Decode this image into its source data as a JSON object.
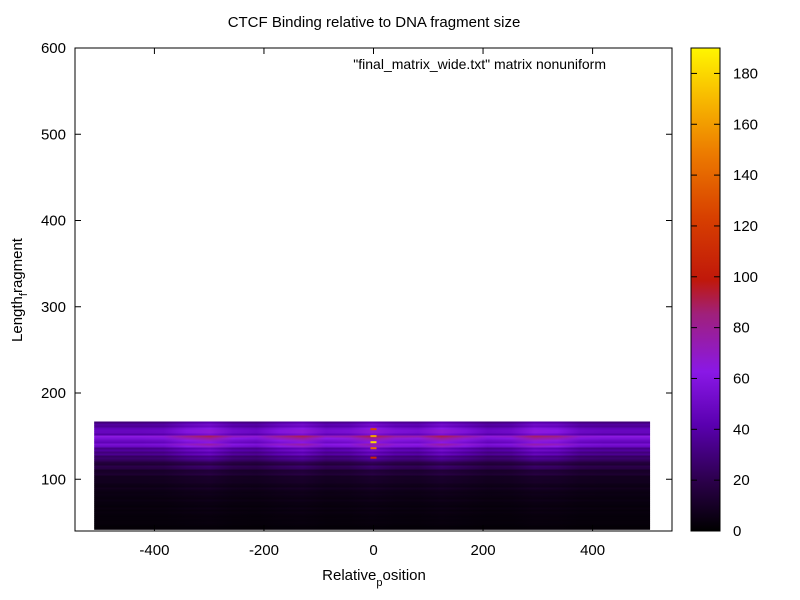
{
  "chart_data": {
    "type": "heatmap",
    "title": "CTCF Binding relative to DNA fragment size",
    "legend_label": "\"final_matrix_wide.txt\" matrix nonuniform",
    "xlabel": {
      "main": "Relative",
      "subscript": "p",
      "rest": "osition"
    },
    "ylabel": {
      "main": "Length",
      "subscript": "f",
      "rest": "ragment"
    },
    "xlim": [
      -545,
      545
    ],
    "ylim": [
      40,
      600
    ],
    "xticks": [
      -400,
      -200,
      0,
      200,
      400
    ],
    "yticks": [
      100,
      200,
      300,
      400,
      500,
      600
    ],
    "data_extent": {
      "x": [
        -510,
        505
      ],
      "y": [
        42,
        167
      ]
    },
    "colorbar": {
      "range": [
        0,
        190
      ],
      "ticks": [
        0,
        20,
        40,
        60,
        80,
        100,
        120,
        140,
        160,
        180
      ],
      "palette": "gnuplot-hot (black-purple-red-orange-yellow)"
    },
    "row_profile": [
      {
        "y": 167,
        "value": 35
      },
      {
        "y": 160,
        "value": 60
      },
      {
        "y": 155,
        "value": 55
      },
      {
        "y": 150,
        "value": 65
      },
      {
        "y": 145,
        "value": 60
      },
      {
        "y": 140,
        "value": 55
      },
      {
        "y": 135,
        "value": 45
      },
      {
        "y": 128,
        "value": 35
      },
      {
        "y": 120,
        "value": 22
      },
      {
        "y": 110,
        "value": 14
      },
      {
        "y": 100,
        "value": 9
      },
      {
        "y": 85,
        "value": 6
      },
      {
        "y": 70,
        "value": 4
      },
      {
        "y": 55,
        "value": 3
      },
      {
        "y": 42,
        "value": 2
      }
    ],
    "position_peaks": [
      -310,
      -140,
      0,
      130,
      310
    ],
    "center_max_value": 180
  }
}
